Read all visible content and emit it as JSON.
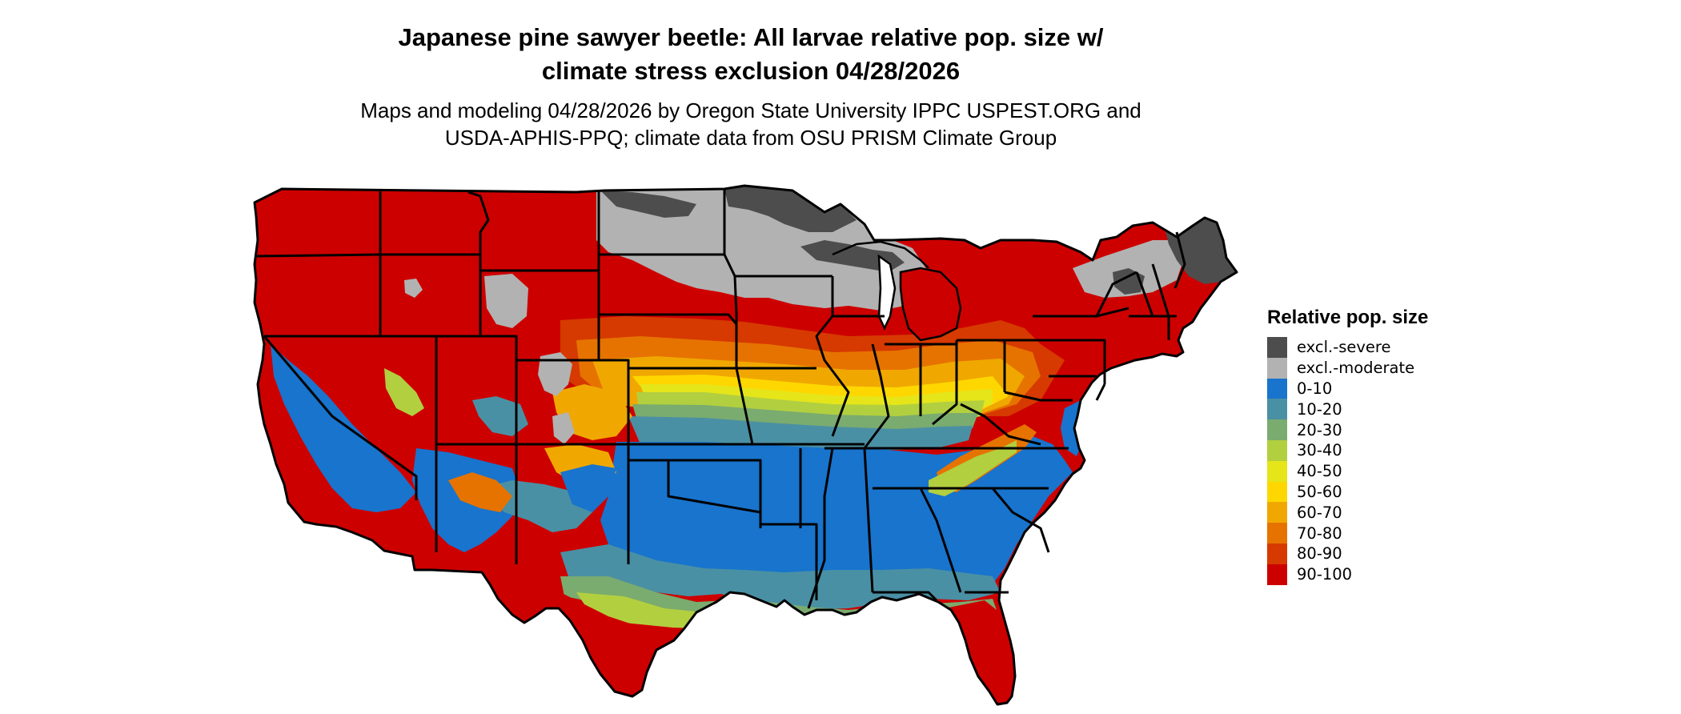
{
  "title": {
    "line1": "Japanese pine sawyer beetle: All larvae relative pop. size w/",
    "line2": "climate stress exclusion 04/28/2026"
  },
  "subtitle": {
    "line1": "Maps and modeling 04/28/2026 by Oregon State University IPPC USPEST.ORG and",
    "line2": "USDA-APHIS-PPQ; climate data from OSU PRISM Climate Group"
  },
  "legend": {
    "title": "Relative pop. size",
    "items": [
      {
        "label": "excl.-severe",
        "color": "#4d4d4d"
      },
      {
        "label": "excl.-moderate",
        "color": "#b2b2b2"
      },
      {
        "label": "0-10",
        "color": "#1874cd"
      },
      {
        "label": "10-20",
        "color": "#4a90a4"
      },
      {
        "label": "20-30",
        "color": "#7aab6f"
      },
      {
        "label": "30-40",
        "color": "#b2cf3f"
      },
      {
        "label": "40-50",
        "color": "#e5e51a"
      },
      {
        "label": "50-60",
        "color": "#ffd700"
      },
      {
        "label": "60-70",
        "color": "#f0a800"
      },
      {
        "label": "70-80",
        "color": "#e67300"
      },
      {
        "label": "80-90",
        "color": "#d63a00"
      },
      {
        "label": "90-100",
        "color": "#cd0000"
      }
    ]
  }
}
